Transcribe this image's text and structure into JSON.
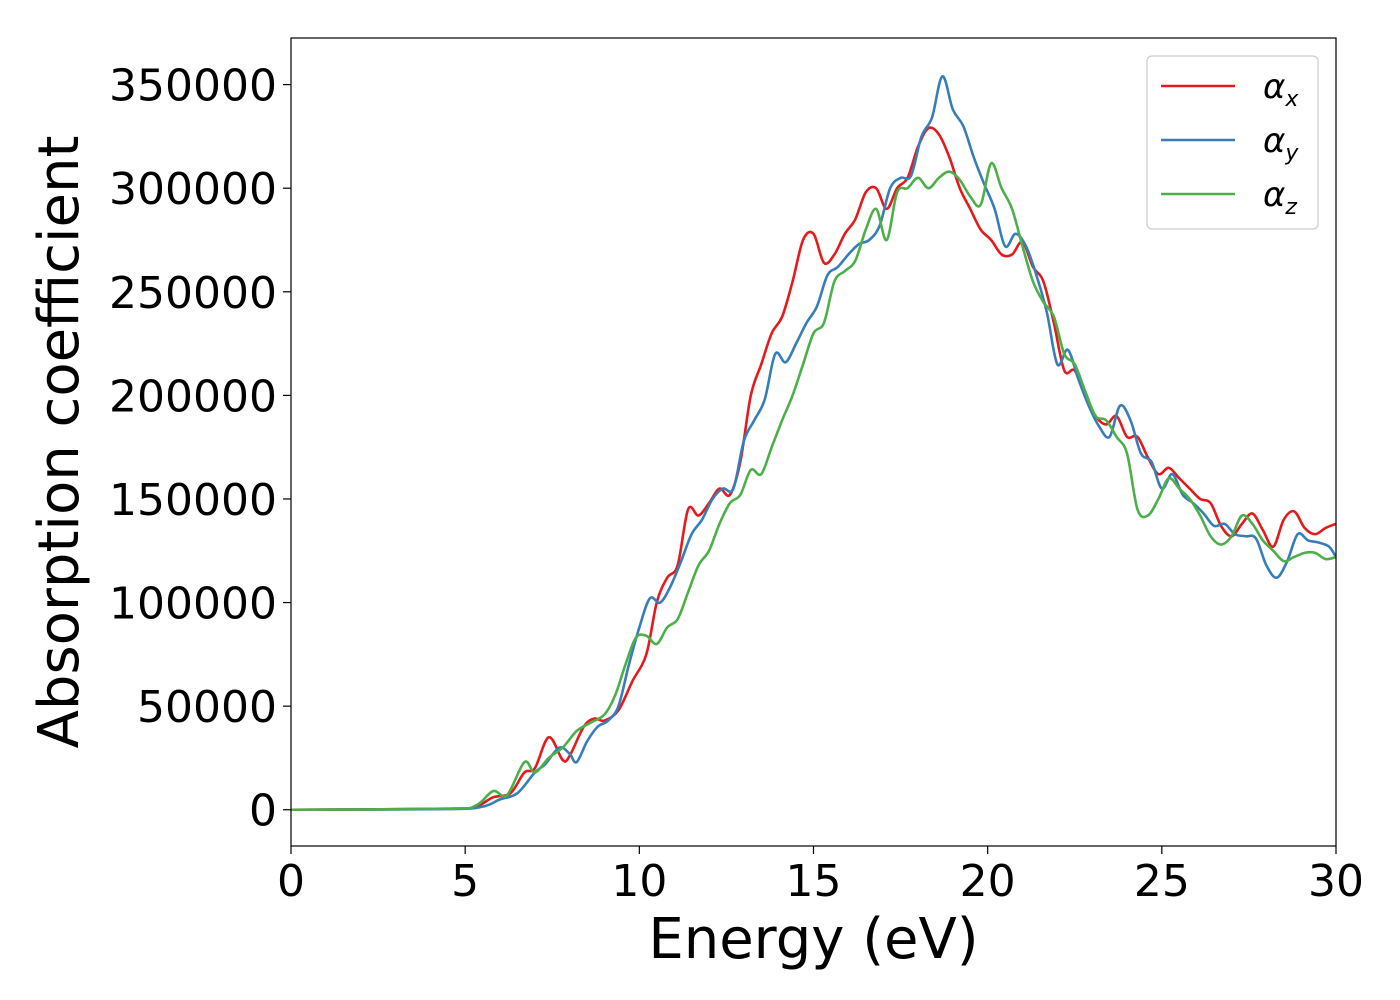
{
  "chart_data": {
    "type": "line",
    "xlabel": "Energy (eV)",
    "ylabel": "Absorption coefficient",
    "xlim": [
      0,
      30
    ],
    "ylim": [
      -17500,
      372500
    ],
    "xticks": [
      0,
      5,
      10,
      15,
      20,
      25,
      30
    ],
    "yticks": [
      0,
      50000,
      100000,
      150000,
      200000,
      250000,
      300000,
      350000
    ],
    "grid": false,
    "legend_position": "top-right",
    "series": [
      {
        "name": "α_x",
        "base": "α",
        "sub": "x",
        "color": "#e41a1c",
        "points": [
          [
            0,
            0
          ],
          [
            4.5,
            500
          ],
          [
            5.3,
            1500
          ],
          [
            5.8,
            6000
          ],
          [
            6.3,
            8000
          ],
          [
            6.7,
            18000
          ],
          [
            7.0,
            20000
          ],
          [
            7.4,
            35000
          ],
          [
            7.8,
            24000
          ],
          [
            8.0,
            26000
          ],
          [
            8.4,
            40000
          ],
          [
            8.7,
            44000
          ],
          [
            9.0,
            43000
          ],
          [
            9.4,
            48000
          ],
          [
            9.8,
            62000
          ],
          [
            10.2,
            75000
          ],
          [
            10.5,
            100000
          ],
          [
            10.8,
            112000
          ],
          [
            11.1,
            118000
          ],
          [
            11.4,
            145000
          ],
          [
            11.7,
            142000
          ],
          [
            12.0,
            148000
          ],
          [
            12.3,
            155000
          ],
          [
            12.6,
            152000
          ],
          [
            12.9,
            168000
          ],
          [
            13.2,
            200000
          ],
          [
            13.5,
            215000
          ],
          [
            13.8,
            230000
          ],
          [
            14.1,
            238000
          ],
          [
            14.4,
            255000
          ],
          [
            14.7,
            275000
          ],
          [
            15.0,
            278000
          ],
          [
            15.3,
            264000
          ],
          [
            15.6,
            268000
          ],
          [
            15.9,
            278000
          ],
          [
            16.2,
            285000
          ],
          [
            16.5,
            298000
          ],
          [
            16.8,
            300000
          ],
          [
            17.1,
            290000
          ],
          [
            17.4,
            300000
          ],
          [
            17.7,
            305000
          ],
          [
            18.0,
            320000
          ],
          [
            18.3,
            329000
          ],
          [
            18.6,
            326000
          ],
          [
            18.9,
            315000
          ],
          [
            19.2,
            300000
          ],
          [
            19.5,
            290000
          ],
          [
            19.8,
            280000
          ],
          [
            20.1,
            275000
          ],
          [
            20.4,
            268000
          ],
          [
            20.7,
            268000
          ],
          [
            21.0,
            274000
          ],
          [
            21.3,
            262000
          ],
          [
            21.6,
            255000
          ],
          [
            21.9,
            235000
          ],
          [
            22.2,
            212000
          ],
          [
            22.5,
            212000
          ],
          [
            22.8,
            200000
          ],
          [
            23.1,
            190000
          ],
          [
            23.4,
            186000
          ],
          [
            23.7,
            190000
          ],
          [
            24.0,
            180000
          ],
          [
            24.3,
            180000
          ],
          [
            24.6,
            170000
          ],
          [
            24.9,
            162000
          ],
          [
            25.2,
            165000
          ],
          [
            25.5,
            160000
          ],
          [
            25.8,
            155000
          ],
          [
            26.1,
            150000
          ],
          [
            26.4,
            148000
          ],
          [
            26.7,
            137000
          ],
          [
            27.0,
            132000
          ],
          [
            27.3,
            138000
          ],
          [
            27.6,
            143000
          ],
          [
            27.9,
            135000
          ],
          [
            28.2,
            127000
          ],
          [
            28.5,
            140000
          ],
          [
            28.8,
            144000
          ],
          [
            29.1,
            136000
          ],
          [
            29.4,
            133000
          ],
          [
            29.7,
            136000
          ],
          [
            30.0,
            138000
          ]
        ]
      },
      {
        "name": "α_y",
        "base": "α",
        "sub": "y",
        "color": "#377eb8",
        "points": [
          [
            0,
            0
          ],
          [
            4.5,
            300
          ],
          [
            5.5,
            1500
          ],
          [
            6.0,
            5000
          ],
          [
            6.5,
            8000
          ],
          [
            7.0,
            18000
          ],
          [
            7.3,
            22000
          ],
          [
            7.7,
            30000
          ],
          [
            8.0,
            27000
          ],
          [
            8.2,
            23000
          ],
          [
            8.5,
            33000
          ],
          [
            8.8,
            40000
          ],
          [
            9.1,
            43000
          ],
          [
            9.4,
            50000
          ],
          [
            9.7,
            70000
          ],
          [
            10.0,
            88000
          ],
          [
            10.3,
            102000
          ],
          [
            10.6,
            100000
          ],
          [
            10.9,
            108000
          ],
          [
            11.2,
            120000
          ],
          [
            11.5,
            133000
          ],
          [
            11.8,
            140000
          ],
          [
            12.1,
            150000
          ],
          [
            12.4,
            155000
          ],
          [
            12.7,
            155000
          ],
          [
            13.0,
            178000
          ],
          [
            13.3,
            188000
          ],
          [
            13.6,
            198000
          ],
          [
            13.9,
            220000
          ],
          [
            14.2,
            216000
          ],
          [
            14.5,
            225000
          ],
          [
            14.8,
            235000
          ],
          [
            15.1,
            243000
          ],
          [
            15.4,
            258000
          ],
          [
            15.7,
            262000
          ],
          [
            16.0,
            268000
          ],
          [
            16.3,
            273000
          ],
          [
            16.6,
            275000
          ],
          [
            16.9,
            282000
          ],
          [
            17.2,
            300000
          ],
          [
            17.5,
            305000
          ],
          [
            17.8,
            306000
          ],
          [
            18.1,
            325000
          ],
          [
            18.4,
            334000
          ],
          [
            18.7,
            354000
          ],
          [
            19.0,
            338000
          ],
          [
            19.3,
            330000
          ],
          [
            19.6,
            315000
          ],
          [
            19.9,
            302000
          ],
          [
            20.2,
            290000
          ],
          [
            20.5,
            272000
          ],
          [
            20.8,
            278000
          ],
          [
            21.1,
            272000
          ],
          [
            21.4,
            258000
          ],
          [
            21.7,
            240000
          ],
          [
            22.0,
            215000
          ],
          [
            22.3,
            222000
          ],
          [
            22.6,
            208000
          ],
          [
            22.9,
            195000
          ],
          [
            23.2,
            185000
          ],
          [
            23.5,
            180000
          ],
          [
            23.8,
            195000
          ],
          [
            24.1,
            188000
          ],
          [
            24.4,
            172000
          ],
          [
            24.7,
            168000
          ],
          [
            25.0,
            155000
          ],
          [
            25.3,
            162000
          ],
          [
            25.6,
            152000
          ],
          [
            25.9,
            148000
          ],
          [
            26.2,
            143000
          ],
          [
            26.5,
            137000
          ],
          [
            26.8,
            138000
          ],
          [
            27.1,
            133000
          ],
          [
            27.4,
            132000
          ],
          [
            27.7,
            131000
          ],
          [
            28.0,
            118000
          ],
          [
            28.3,
            112000
          ],
          [
            28.6,
            120000
          ],
          [
            28.9,
            133000
          ],
          [
            29.2,
            130000
          ],
          [
            29.5,
            129000
          ],
          [
            29.8,
            127000
          ],
          [
            30.0,
            122000
          ]
        ]
      },
      {
        "name": "α_z",
        "base": "α",
        "sub": "z",
        "color": "#4daf4a",
        "points": [
          [
            0,
            0
          ],
          [
            4.5,
            500
          ],
          [
            5.3,
            2000
          ],
          [
            5.8,
            9000
          ],
          [
            6.2,
            7000
          ],
          [
            6.7,
            23000
          ],
          [
            7.0,
            18000
          ],
          [
            7.4,
            25000
          ],
          [
            7.8,
            30000
          ],
          [
            8.2,
            38000
          ],
          [
            8.6,
            42000
          ],
          [
            9.0,
            46000
          ],
          [
            9.3,
            55000
          ],
          [
            9.6,
            70000
          ],
          [
            9.9,
            83000
          ],
          [
            10.2,
            84000
          ],
          [
            10.5,
            80000
          ],
          [
            10.8,
            88000
          ],
          [
            11.1,
            92000
          ],
          [
            11.4,
            105000
          ],
          [
            11.7,
            118000
          ],
          [
            12.0,
            125000
          ],
          [
            12.3,
            138000
          ],
          [
            12.6,
            148000
          ],
          [
            12.9,
            152000
          ],
          [
            13.2,
            164000
          ],
          [
            13.5,
            162000
          ],
          [
            13.8,
            175000
          ],
          [
            14.1,
            188000
          ],
          [
            14.4,
            200000
          ],
          [
            14.7,
            215000
          ],
          [
            15.0,
            230000
          ],
          [
            15.3,
            235000
          ],
          [
            15.6,
            255000
          ],
          [
            15.9,
            260000
          ],
          [
            16.2,
            265000
          ],
          [
            16.5,
            280000
          ],
          [
            16.8,
            290000
          ],
          [
            17.1,
            275000
          ],
          [
            17.4,
            298000
          ],
          [
            17.7,
            300000
          ],
          [
            18.0,
            305000
          ],
          [
            18.3,
            300000
          ],
          [
            18.6,
            305000
          ],
          [
            18.9,
            308000
          ],
          [
            19.2,
            304000
          ],
          [
            19.5,
            296000
          ],
          [
            19.8,
            292000
          ],
          [
            20.1,
            312000
          ],
          [
            20.4,
            300000
          ],
          [
            20.7,
            290000
          ],
          [
            21.0,
            272000
          ],
          [
            21.3,
            255000
          ],
          [
            21.6,
            245000
          ],
          [
            21.9,
            238000
          ],
          [
            22.2,
            220000
          ],
          [
            22.5,
            215000
          ],
          [
            22.8,
            202000
          ],
          [
            23.1,
            190000
          ],
          [
            23.4,
            188000
          ],
          [
            23.7,
            180000
          ],
          [
            24.0,
            172000
          ],
          [
            24.3,
            145000
          ],
          [
            24.6,
            142000
          ],
          [
            24.9,
            150000
          ],
          [
            25.2,
            160000
          ],
          [
            25.5,
            155000
          ],
          [
            25.8,
            150000
          ],
          [
            26.1,
            142000
          ],
          [
            26.4,
            132000
          ],
          [
            26.7,
            128000
          ],
          [
            27.0,
            132000
          ],
          [
            27.3,
            142000
          ],
          [
            27.6,
            138000
          ],
          [
            27.9,
            130000
          ],
          [
            28.2,
            125000
          ],
          [
            28.5,
            120000
          ],
          [
            28.8,
            122000
          ],
          [
            29.1,
            124000
          ],
          [
            29.4,
            124000
          ],
          [
            29.7,
            121000
          ],
          [
            30.0,
            122000
          ]
        ]
      }
    ]
  }
}
